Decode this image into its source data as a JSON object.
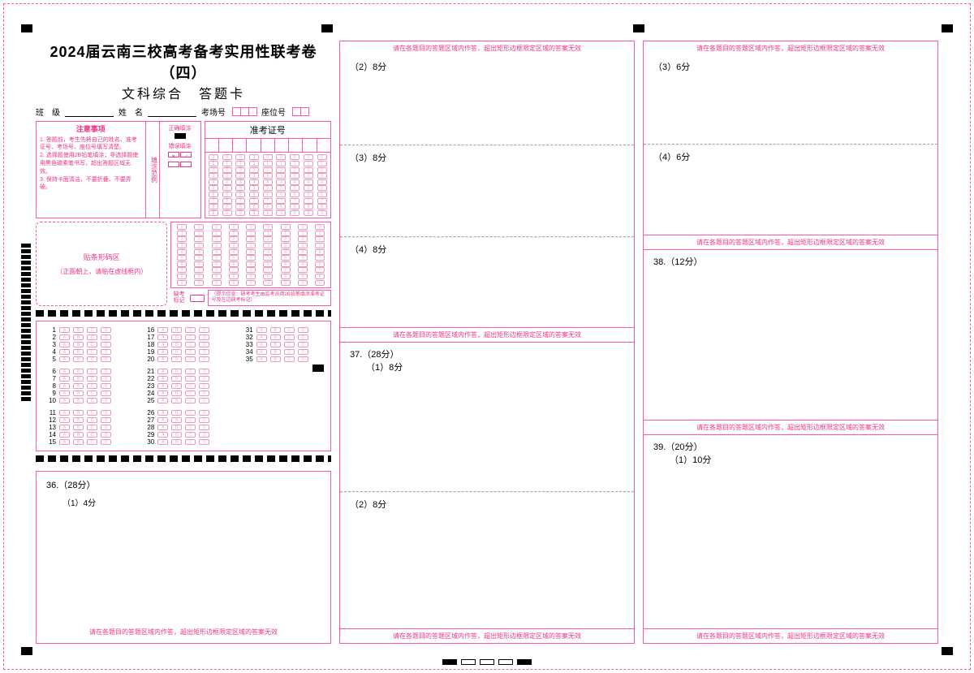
{
  "title_line1": "2024届云南三校高考备考实用性联考卷（四）",
  "title_line2": "文科综合　答题卡",
  "labels": {
    "class": "班　级",
    "name": "姓　名",
    "room": "考场号",
    "seat": "座位号",
    "admit": "准考证号",
    "notice_title": "注意事项",
    "fill_example": "填涂范例",
    "correct_fill": "正确填涂",
    "wrong_fill": "错误填涂",
    "barcode_title": "贴条形码区",
    "barcode_sub": "（正面朝上，请贴在虚线框内）",
    "absent_label": "缺考标记",
    "absent_note": "（提示信息：缺考考生由监考员用2B铅笔填涂准考证号及左边缺考标记）"
  },
  "notice_items": [
    "1. 答题前，考生先将自己的姓名、准考证号、考场号、座位号填写清楚。",
    "2. 选择题使用2B铅笔填涂；非选择题使用黑色碳素笔书写，超出答题区域无效。",
    "3. 保持卡面清洁，不要折叠、不要弄破。"
  ],
  "mc": {
    "options": [
      "A",
      "B",
      "C",
      "D"
    ],
    "groups": [
      [
        1,
        2,
        3,
        4,
        5
      ],
      [
        6,
        7,
        8,
        9,
        10
      ],
      [
        11,
        12,
        13,
        14,
        15
      ],
      [
        16,
        17,
        18,
        19,
        20
      ],
      [
        21,
        22,
        23,
        24,
        25
      ],
      [
        26,
        27,
        28,
        29,
        30
      ],
      [
        31,
        32,
        33,
        34,
        35
      ]
    ]
  },
  "col1": {
    "q36": "36.（28分）",
    "q36_1": "（1）4分"
  },
  "col2": {
    "warn": "请在各题目的答题区域内作答，超出矩形边框限定区域的答案无效",
    "p1": "（2）8分",
    "p2": "（3）8分",
    "p3": "（4）8分",
    "q37": "37.（28分）",
    "q37_1": "（1）8分",
    "q37_2": "（2）8分"
  },
  "col3": {
    "warn": "请在各题目的答题区域内作答，超出矩形边框限定区域的答案无效",
    "p1": "（3）6分",
    "p2": "（4）6分",
    "q38": "38.（12分）",
    "q39": "39.（20分）",
    "q39_1": "（1）10分"
  },
  "bottom_warn": "请在各题目的答题区域内作答，超出矩形边框限定区域的答案无效",
  "colors": {
    "pink": "#ff55aa",
    "text_pink": "#ee3388"
  }
}
